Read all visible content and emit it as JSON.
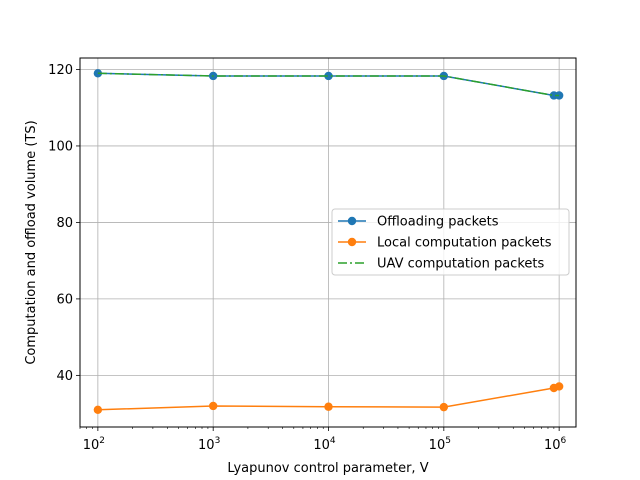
{
  "chart_data": {
    "type": "line",
    "xscale": "log",
    "xlim": [
      70,
      1400000
    ],
    "ylim": [
      26.5,
      123
    ],
    "xlabel": "Lyapunov control parameter, V",
    "ylabel": "Computation and offload volume (TS)",
    "xticks": [
      {
        "value": 100,
        "base": "10",
        "exp": "2"
      },
      {
        "value": 1000,
        "base": "10",
        "exp": "3"
      },
      {
        "value": 10000,
        "base": "10",
        "exp": "4"
      },
      {
        "value": 100000,
        "base": "10",
        "exp": "5"
      },
      {
        "value": 1000000,
        "base": "10",
        "exp": "6"
      }
    ],
    "yticks": [
      40,
      60,
      80,
      100,
      120
    ],
    "grid": true,
    "legend_position": "center-right",
    "series": [
      {
        "name": "Offloading packets",
        "color": "#1f77b4",
        "style": "solid",
        "marker": "circle",
        "x": [
          100,
          1000,
          10000,
          100000,
          900000,
          1000000
        ],
        "y": [
          119.0,
          118.3,
          118.3,
          118.3,
          113.2,
          113.2
        ]
      },
      {
        "name": "Local computation packets",
        "color": "#ff7f0e",
        "style": "solid",
        "marker": "circle",
        "x": [
          100,
          1000,
          10000,
          100000,
          900000,
          1000000
        ],
        "y": [
          31.0,
          32.0,
          31.8,
          31.7,
          36.7,
          37.1
        ]
      },
      {
        "name": "UAV computation packets",
        "color": "#2ca02c",
        "style": "dashdot",
        "marker": "none",
        "x": [
          100,
          1000,
          10000,
          100000,
          900000,
          1000000
        ],
        "y": [
          119.0,
          118.3,
          118.3,
          118.3,
          113.2,
          113.2
        ]
      }
    ]
  }
}
